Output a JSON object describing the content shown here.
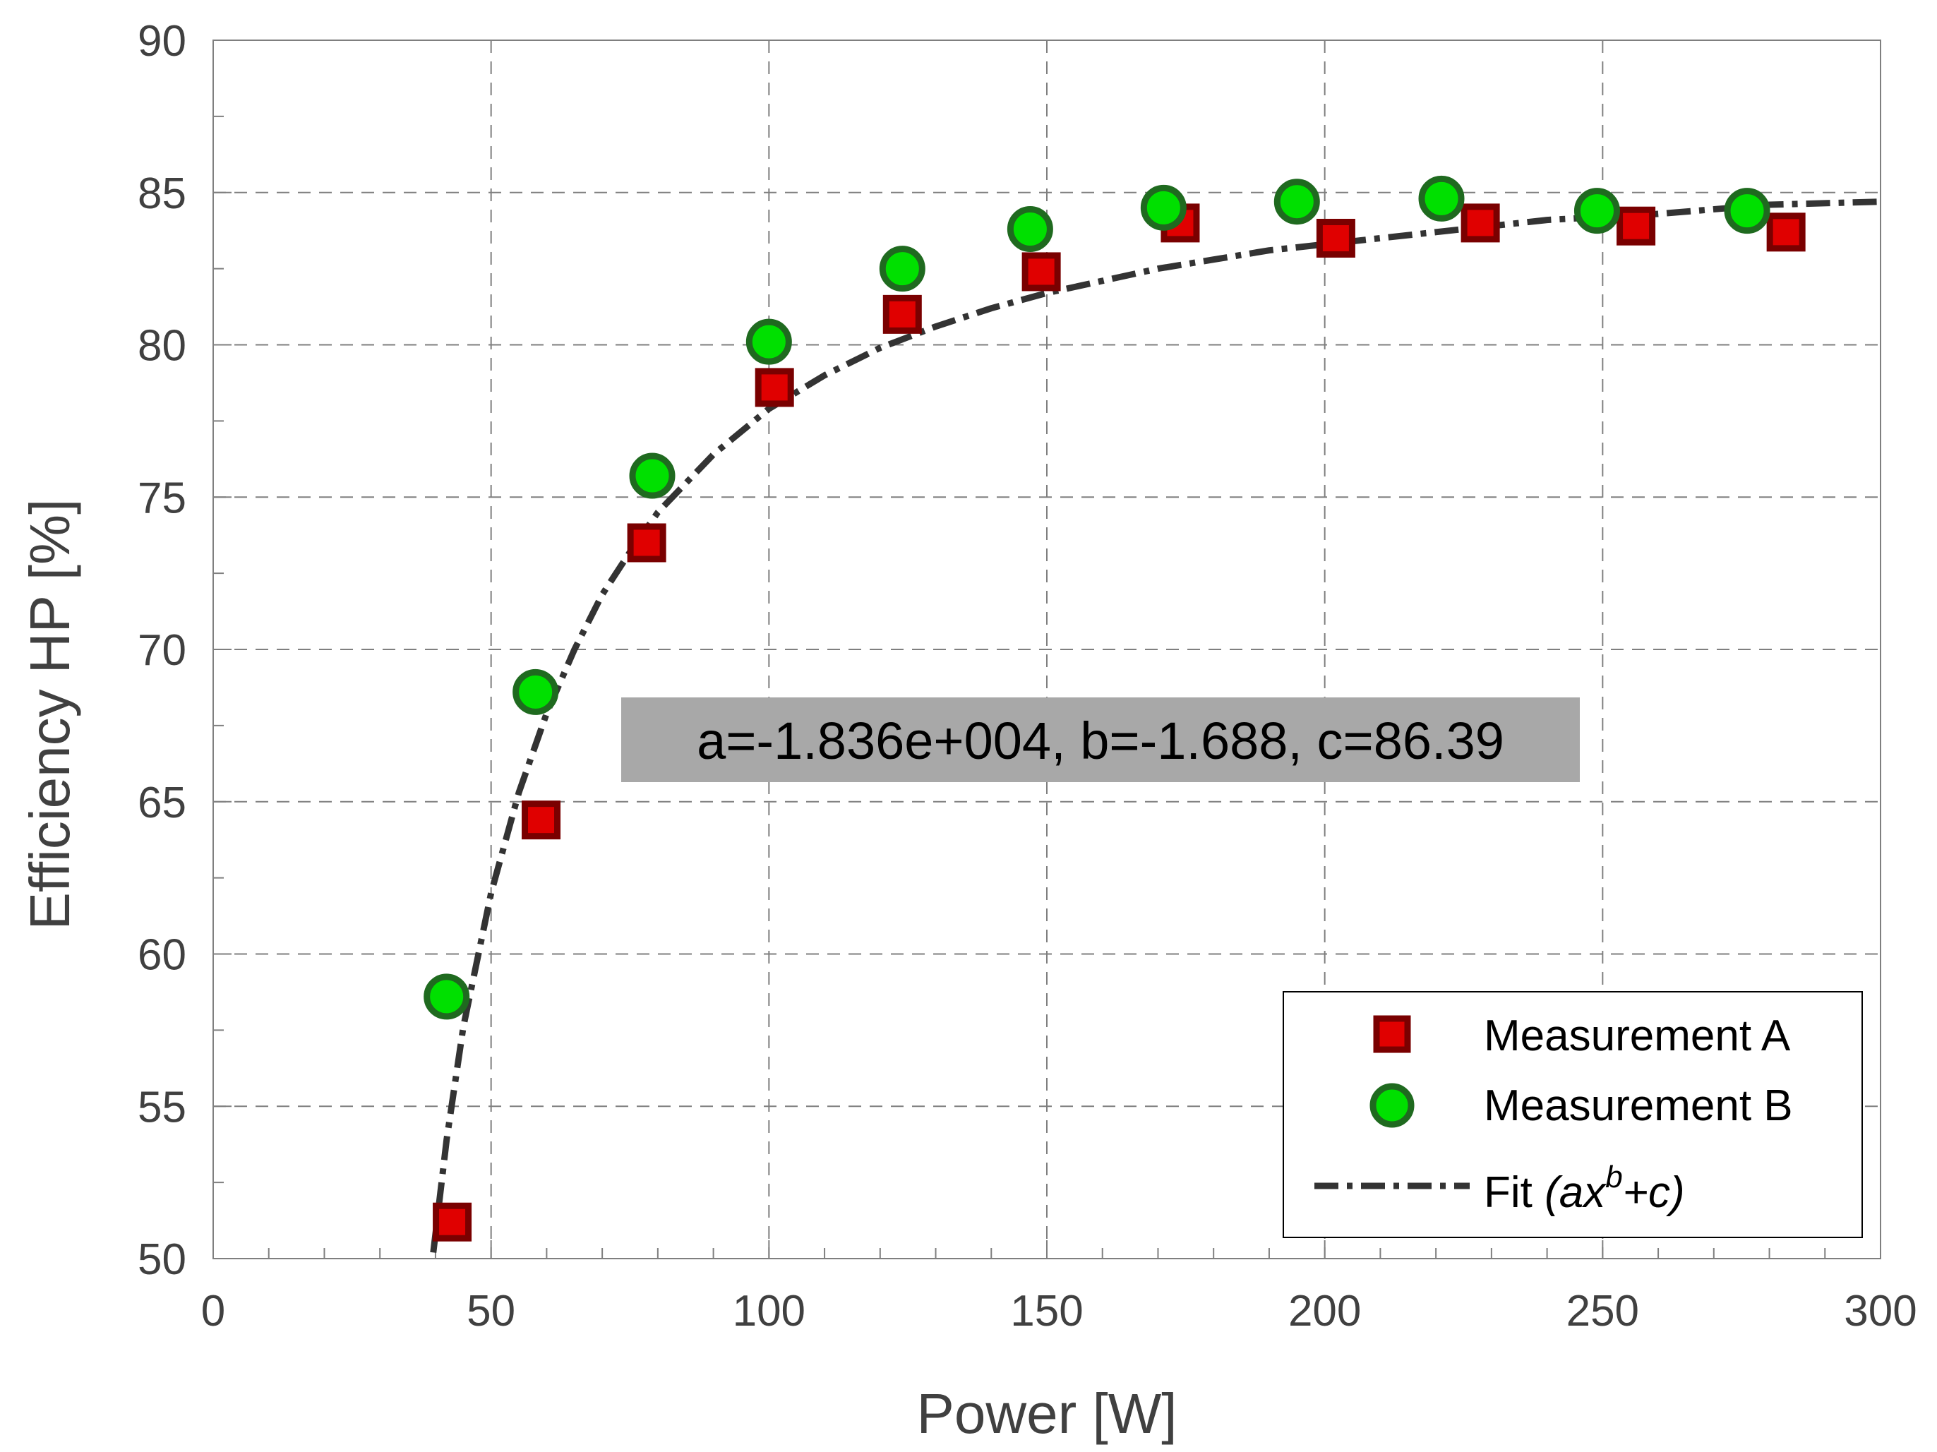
{
  "chart_data": {
    "type": "scatter",
    "title": "",
    "xlabel": "Power [W]",
    "ylabel": "Efficiency HP [%]",
    "xlim": [
      0,
      300
    ],
    "ylim": [
      50,
      90
    ],
    "xticks": [
      0,
      50,
      100,
      150,
      200,
      250,
      300
    ],
    "yticks": [
      50,
      55,
      60,
      65,
      70,
      75,
      80,
      85,
      90
    ],
    "grid": true,
    "legend_position": "bottom-right",
    "series": [
      {
        "name": "Measurement A",
        "marker": "square",
        "color": "#e00000",
        "edge_color": "#7a0000",
        "x": [
          43,
          59,
          78,
          101,
          124,
          149,
          174,
          202,
          228,
          256,
          283
        ],
        "y": [
          51.2,
          64.4,
          73.5,
          78.6,
          81.0,
          82.4,
          84.0,
          83.5,
          84.0,
          83.9,
          83.7
        ]
      },
      {
        "name": "Measurement B",
        "marker": "circle",
        "color": "#00e000",
        "edge_color": "#1f6a1f",
        "x": [
          42,
          58,
          79,
          100,
          124,
          147,
          171,
          195,
          221,
          249,
          276
        ],
        "y": [
          58.6,
          68.6,
          75.7,
          80.1,
          82.5,
          83.8,
          84.5,
          84.7,
          84.8,
          84.4,
          84.4
        ]
      },
      {
        "name": "Fit",
        "legend_label": "Fit ",
        "legend_label_math": "(ax",
        "legend_label_sup": "b",
        "legend_label_tail": "+c)",
        "type": "line",
        "style": "dash-dot",
        "color": "#333333",
        "x": [
          39.6,
          42,
          45,
          50,
          55,
          60,
          65,
          70,
          75,
          80,
          90,
          100,
          110,
          120,
          130,
          140,
          150,
          160,
          170,
          180,
          190,
          200,
          220,
          240,
          260,
          280,
          300
        ],
        "y": [
          50.2,
          53.9,
          57.6,
          62.0,
          65.3,
          67.9,
          70.0,
          71.8,
          73.2,
          74.5,
          76.4,
          77.9,
          79.0,
          79.9,
          80.6,
          81.2,
          81.7,
          82.1,
          82.5,
          82.8,
          83.1,
          83.3,
          83.7,
          84.1,
          84.3,
          84.6,
          84.7
        ]
      }
    ],
    "annotation": "a=-1.836e+004, b=-1.688, c=86.39"
  }
}
